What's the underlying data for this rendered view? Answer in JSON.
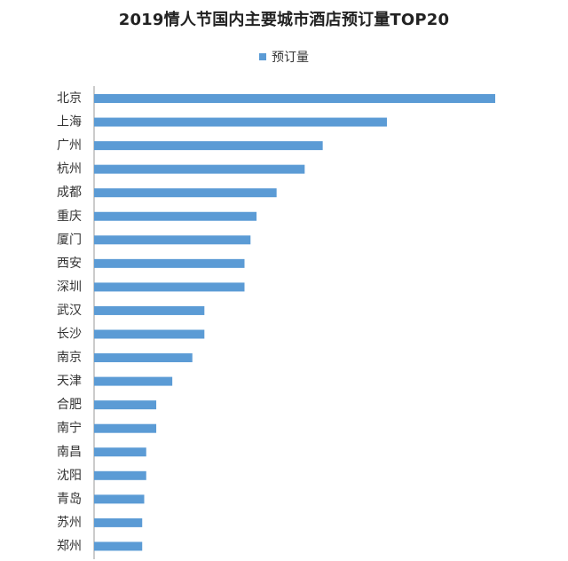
{
  "colors": {
    "bar": "#5b9bd5",
    "axis": "#999999"
  },
  "chart_data": {
    "type": "bar",
    "orientation": "horizontal",
    "title": "2019情人节国内主要城市酒店预订量TOP20",
    "legend": {
      "position": "top",
      "series_name": "预订量"
    },
    "grid": false,
    "categories": [
      "北京",
      "上海",
      "广州",
      "杭州",
      "成都",
      "重庆",
      "厦门",
      "西安",
      "深圳",
      "武汉",
      "长沙",
      "南京",
      "天津",
      "合肥",
      "南宁",
      "南昌",
      "沈阳",
      "青岛",
      "苏州",
      "郑州"
    ],
    "series": [
      {
        "name": "预订量",
        "values": [
          100,
          73,
          57,
          52.5,
          45.5,
          40.5,
          39,
          37.5,
          37.5,
          27.5,
          27.5,
          24.5,
          19.5,
          15.5,
          15.5,
          13,
          13,
          12.5,
          12,
          12
        ]
      }
    ],
    "xlim": [
      0,
      100
    ]
  }
}
